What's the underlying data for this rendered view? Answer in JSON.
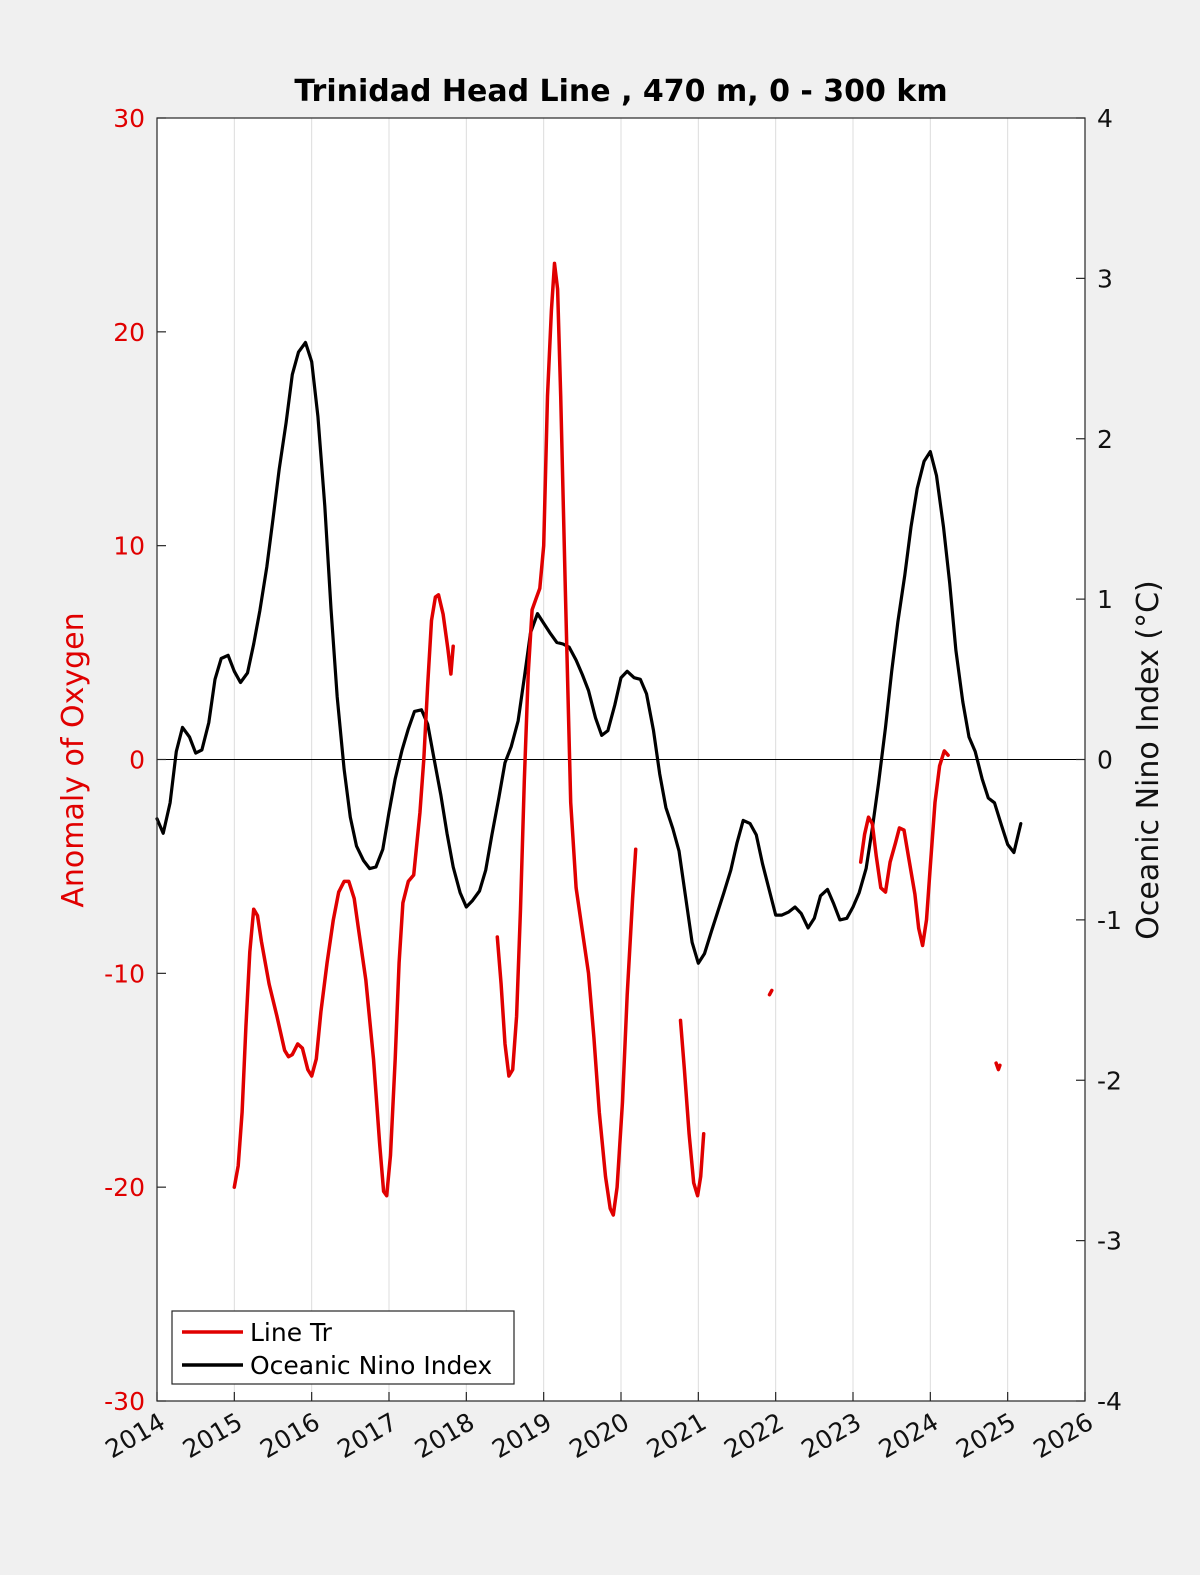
{
  "chart_data": {
    "type": "line",
    "title": "Trinidad Head Line , 470 m, 0 - 300 km",
    "xlabel": "",
    "ylabel_left": "Anomaly of Oxygen",
    "ylabel_right": "Oceanic Nino Index (°C)",
    "xlim": [
      2014,
      2026
    ],
    "ylim_left": [
      -30,
      30
    ],
    "ylim_right": [
      -4,
      4
    ],
    "x_ticks": [
      2014,
      2015,
      2016,
      2017,
      2018,
      2019,
      2020,
      2021,
      2022,
      2023,
      2024,
      2025,
      2026
    ],
    "x_tick_labels": [
      "2014",
      "2015",
      "2016",
      "2017",
      "2018",
      "2019",
      "2020",
      "2021",
      "2022",
      "2023",
      "2024",
      "2025",
      "2026"
    ],
    "y_ticks_left": [
      -30,
      -20,
      -10,
      0,
      10,
      20,
      30
    ],
    "y_tick_labels_left": [
      "-30",
      "-20",
      "-10",
      "0",
      "10",
      "20",
      "30"
    ],
    "y_ticks_right": [
      -4,
      -3,
      -2,
      -1,
      0,
      1,
      2,
      3,
      4
    ],
    "y_tick_labels_right": [
      "-4",
      "-3",
      "-2",
      "-1",
      "0",
      "1",
      "2",
      "3",
      "4"
    ],
    "grid": "vertical",
    "zero_line": true,
    "legend_position": "bottom-left",
    "series": [
      {
        "name": "Line Tr",
        "axis": "left",
        "color": "#e00000",
        "segments": [
          [
            [
              2015.0,
              -20.0
            ],
            [
              2015.05,
              -19.0
            ],
            [
              2015.1,
              -16.5
            ],
            [
              2015.15,
              -12.5
            ],
            [
              2015.2,
              -9.0
            ],
            [
              2015.25,
              -7.0
            ],
            [
              2015.3,
              -7.3
            ],
            [
              2015.35,
              -8.5
            ],
            [
              2015.45,
              -10.5
            ],
            [
              2015.55,
              -12.0
            ],
            [
              2015.65,
              -13.6
            ],
            [
              2015.7,
              -13.9
            ],
            [
              2015.75,
              -13.8
            ],
            [
              2015.82,
              -13.3
            ],
            [
              2015.88,
              -13.5
            ],
            [
              2015.95,
              -14.5
            ],
            [
              2016.0,
              -14.8
            ],
            [
              2016.06,
              -14.0
            ],
            [
              2016.12,
              -11.8
            ],
            [
              2016.2,
              -9.5
            ],
            [
              2016.28,
              -7.5
            ],
            [
              2016.35,
              -6.2
            ],
            [
              2016.42,
              -5.7
            ],
            [
              2016.48,
              -5.7
            ],
            [
              2016.55,
              -6.5
            ],
            [
              2016.6,
              -7.8
            ],
            [
              2016.7,
              -10.3
            ],
            [
              2016.8,
              -14.0
            ],
            [
              2016.88,
              -18.0
            ],
            [
              2016.93,
              -20.2
            ],
            [
              2016.97,
              -20.4
            ],
            [
              2017.02,
              -18.5
            ],
            [
              2017.08,
              -14.0
            ],
            [
              2017.13,
              -9.5
            ],
            [
              2017.18,
              -6.7
            ],
            [
              2017.25,
              -5.7
            ],
            [
              2017.32,
              -5.4
            ],
            [
              2017.4,
              -2.5
            ],
            [
              2017.45,
              0.0
            ],
            [
              2017.5,
              3.5
            ],
            [
              2017.55,
              6.5
            ],
            [
              2017.6,
              7.6
            ],
            [
              2017.64,
              7.7
            ],
            [
              2017.7,
              6.8
            ],
            [
              2017.76,
              5.2
            ],
            [
              2017.8,
              4.0
            ],
            [
              2017.83,
              5.3
            ]
          ],
          [
            [
              2018.4,
              -8.3
            ],
            [
              2018.45,
              -10.5
            ],
            [
              2018.5,
              -13.3
            ],
            [
              2018.55,
              -14.8
            ],
            [
              2018.6,
              -14.5
            ],
            [
              2018.65,
              -12.0
            ],
            [
              2018.7,
              -7.0
            ],
            [
              2018.75,
              -1.0
            ],
            [
              2018.8,
              4.0
            ],
            [
              2018.85,
              7.0
            ],
            [
              2018.9,
              7.5
            ],
            [
              2018.95,
              8.0
            ],
            [
              2019.0,
              10.0
            ],
            [
              2019.05,
              17.0
            ],
            [
              2019.1,
              21.0
            ],
            [
              2019.14,
              23.2
            ],
            [
              2019.18,
              22.0
            ],
            [
              2019.22,
              17.0
            ],
            [
              2019.28,
              8.0
            ],
            [
              2019.35,
              -2.0
            ],
            [
              2019.42,
              -6.0
            ],
            [
              2019.5,
              -8.0
            ],
            [
              2019.58,
              -10.0
            ],
            [
              2019.65,
              -13.0
            ],
            [
              2019.72,
              -16.5
            ],
            [
              2019.8,
              -19.5
            ],
            [
              2019.86,
              -21.0
            ],
            [
              2019.9,
              -21.3
            ],
            [
              2019.95,
              -20.0
            ],
            [
              2020.02,
              -16.0
            ],
            [
              2020.08,
              -11.0
            ],
            [
              2020.15,
              -6.5
            ],
            [
              2020.19,
              -4.2
            ]
          ],
          [
            [
              2020.77,
              -12.2
            ],
            [
              2020.82,
              -14.5
            ],
            [
              2020.88,
              -17.5
            ],
            [
              2020.94,
              -19.8
            ],
            [
              2020.99,
              -20.4
            ],
            [
              2021.03,
              -19.5
            ],
            [
              2021.07,
              -17.5
            ]
          ],
          [
            [
              2021.92,
              -11.0
            ],
            [
              2021.95,
              -10.8
            ]
          ],
          [
            [
              2023.1,
              -4.8
            ],
            [
              2023.15,
              -3.5
            ],
            [
              2023.2,
              -2.7
            ],
            [
              2023.25,
              -3.0
            ],
            [
              2023.3,
              -4.5
            ],
            [
              2023.36,
              -6.0
            ],
            [
              2023.42,
              -6.2
            ],
            [
              2023.48,
              -4.8
            ],
            [
              2023.55,
              -3.9
            ],
            [
              2023.6,
              -3.2
            ],
            [
              2023.66,
              -3.3
            ],
            [
              2023.72,
              -4.6
            ],
            [
              2023.8,
              -6.3
            ],
            [
              2023.85,
              -7.9
            ],
            [
              2023.9,
              -8.7
            ],
            [
              2023.95,
              -7.5
            ],
            [
              2024.0,
              -5.0
            ],
            [
              2024.06,
              -2.0
            ],
            [
              2024.12,
              -0.3
            ],
            [
              2024.18,
              0.4
            ],
            [
              2024.23,
              0.2
            ]
          ],
          [
            [
              2024.85,
              -14.2
            ],
            [
              2024.88,
              -14.5
            ],
            [
              2024.9,
              -14.3
            ]
          ]
        ]
      },
      {
        "name": "Oceanic Nino Index",
        "axis": "right",
        "color": "#000000",
        "values": [
          [
            2014.0,
            -0.37
          ],
          [
            2014.08,
            -0.46
          ],
          [
            2014.17,
            -0.27
          ],
          [
            2014.25,
            0.05
          ],
          [
            2014.33,
            0.2
          ],
          [
            2014.42,
            0.14
          ],
          [
            2014.5,
            0.04
          ],
          [
            2014.58,
            0.06
          ],
          [
            2014.67,
            0.23
          ],
          [
            2014.75,
            0.5
          ],
          [
            2014.83,
            0.63
          ],
          [
            2014.92,
            0.65
          ],
          [
            2015.0,
            0.55
          ],
          [
            2015.08,
            0.48
          ],
          [
            2015.17,
            0.54
          ],
          [
            2015.25,
            0.72
          ],
          [
            2015.33,
            0.93
          ],
          [
            2015.42,
            1.2
          ],
          [
            2015.5,
            1.5
          ],
          [
            2015.58,
            1.81
          ],
          [
            2015.67,
            2.1
          ],
          [
            2015.75,
            2.4
          ],
          [
            2015.83,
            2.54
          ],
          [
            2015.92,
            2.6
          ],
          [
            2016.0,
            2.48
          ],
          [
            2016.08,
            2.14
          ],
          [
            2016.17,
            1.58
          ],
          [
            2016.25,
            0.94
          ],
          [
            2016.33,
            0.39
          ],
          [
            2016.42,
            -0.06
          ],
          [
            2016.5,
            -0.36
          ],
          [
            2016.58,
            -0.54
          ],
          [
            2016.67,
            -0.63
          ],
          [
            2016.75,
            -0.68
          ],
          [
            2016.83,
            -0.67
          ],
          [
            2016.92,
            -0.56
          ],
          [
            2017.0,
            -0.33
          ],
          [
            2017.08,
            -0.12
          ],
          [
            2017.17,
            0.06
          ],
          [
            2017.25,
            0.19
          ],
          [
            2017.33,
            0.3
          ],
          [
            2017.42,
            0.31
          ],
          [
            2017.5,
            0.22
          ],
          [
            2017.58,
            0.01
          ],
          [
            2017.67,
            -0.22
          ],
          [
            2017.75,
            -0.46
          ],
          [
            2017.83,
            -0.67
          ],
          [
            2017.92,
            -0.83
          ],
          [
            2018.0,
            -0.92
          ],
          [
            2018.08,
            -0.88
          ],
          [
            2018.17,
            -0.82
          ],
          [
            2018.25,
            -0.69
          ],
          [
            2018.33,
            -0.47
          ],
          [
            2018.42,
            -0.24
          ],
          [
            2018.5,
            -0.02
          ],
          [
            2018.58,
            0.08
          ],
          [
            2018.67,
            0.24
          ],
          [
            2018.75,
            0.51
          ],
          [
            2018.83,
            0.79
          ],
          [
            2018.92,
            0.91
          ],
          [
            2019.0,
            0.85
          ],
          [
            2019.08,
            0.79
          ],
          [
            2019.17,
            0.73
          ],
          [
            2019.25,
            0.72
          ],
          [
            2019.33,
            0.7
          ],
          [
            2019.42,
            0.62
          ],
          [
            2019.5,
            0.53
          ],
          [
            2019.58,
            0.43
          ],
          [
            2019.67,
            0.26
          ],
          [
            2019.75,
            0.15
          ],
          [
            2019.83,
            0.18
          ],
          [
            2019.92,
            0.34
          ],
          [
            2020.0,
            0.51
          ],
          [
            2020.08,
            0.55
          ],
          [
            2020.17,
            0.51
          ],
          [
            2020.25,
            0.5
          ],
          [
            2020.33,
            0.41
          ],
          [
            2020.42,
            0.18
          ],
          [
            2020.5,
            -0.09
          ],
          [
            2020.58,
            -0.3
          ],
          [
            2020.67,
            -0.43
          ],
          [
            2020.75,
            -0.57
          ],
          [
            2020.83,
            -0.84
          ],
          [
            2020.92,
            -1.14
          ],
          [
            2021.0,
            -1.27
          ],
          [
            2021.08,
            -1.21
          ],
          [
            2021.17,
            -1.07
          ],
          [
            2021.25,
            -0.95
          ],
          [
            2021.33,
            -0.83
          ],
          [
            2021.42,
            -0.69
          ],
          [
            2021.5,
            -0.52
          ],
          [
            2021.58,
            -0.38
          ],
          [
            2021.67,
            -0.4
          ],
          [
            2021.75,
            -0.47
          ],
          [
            2021.83,
            -0.65
          ],
          [
            2021.92,
            -0.82
          ],
          [
            2022.0,
            -0.97
          ],
          [
            2022.08,
            -0.97
          ],
          [
            2022.17,
            -0.95
          ],
          [
            2022.25,
            -0.92
          ],
          [
            2022.33,
            -0.96
          ],
          [
            2022.42,
            -1.05
          ],
          [
            2022.5,
            -0.99
          ],
          [
            2022.58,
            -0.85
          ],
          [
            2022.67,
            -0.81
          ],
          [
            2022.75,
            -0.9
          ],
          [
            2022.83,
            -1.0
          ],
          [
            2022.92,
            -0.99
          ],
          [
            2023.0,
            -0.92
          ],
          [
            2023.08,
            -0.83
          ],
          [
            2023.17,
            -0.68
          ],
          [
            2023.25,
            -0.43
          ],
          [
            2023.33,
            -0.15
          ],
          [
            2023.42,
            0.2
          ],
          [
            2023.5,
            0.55
          ],
          [
            2023.58,
            0.86
          ],
          [
            2023.67,
            1.15
          ],
          [
            2023.75,
            1.45
          ],
          [
            2023.83,
            1.69
          ],
          [
            2023.92,
            1.86
          ],
          [
            2024.0,
            1.92
          ],
          [
            2024.08,
            1.77
          ],
          [
            2024.17,
            1.45
          ],
          [
            2024.25,
            1.1
          ],
          [
            2024.33,
            0.68
          ],
          [
            2024.42,
            0.36
          ],
          [
            2024.5,
            0.14
          ],
          [
            2024.58,
            0.05
          ],
          [
            2024.67,
            -0.12
          ],
          [
            2024.75,
            -0.24
          ],
          [
            2024.83,
            -0.27
          ],
          [
            2024.92,
            -0.41
          ],
          [
            2025.0,
            -0.53
          ],
          [
            2025.08,
            -0.58
          ],
          [
            2025.17,
            -0.4
          ]
        ]
      }
    ]
  }
}
